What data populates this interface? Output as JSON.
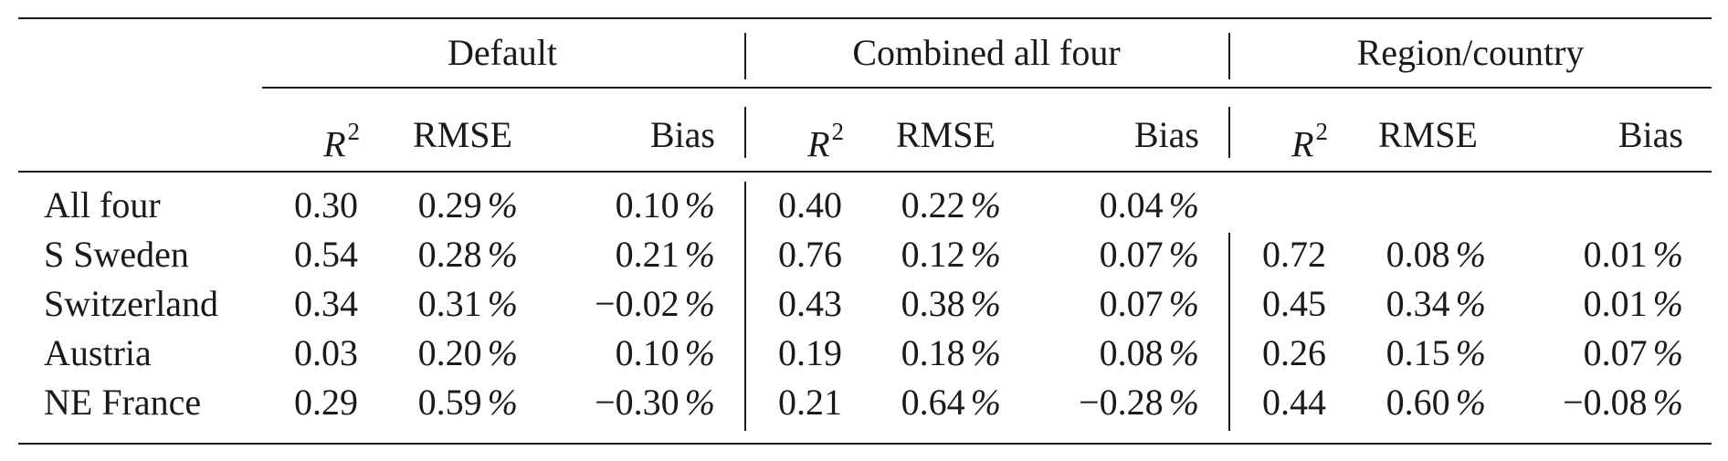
{
  "table": {
    "groups": [
      "Default",
      "Combined all four",
      "Region/country"
    ],
    "subheaders": {
      "r2_symbol": "R",
      "r2_exponent": "2",
      "rmse": "RMSE",
      "bias": "Bias"
    },
    "percent_sign": "%",
    "rows": [
      {
        "label": "All four",
        "default": {
          "r2": "0.30",
          "rmse": "0.29",
          "bias": "0.10"
        },
        "combined": {
          "r2": "0.40",
          "rmse": "0.22",
          "bias": "0.04"
        },
        "region": {
          "r2": "",
          "rmse": "",
          "bias": ""
        }
      },
      {
        "label": "S Sweden",
        "default": {
          "r2": "0.54",
          "rmse": "0.28",
          "bias": "0.21"
        },
        "combined": {
          "r2": "0.76",
          "rmse": "0.12",
          "bias": "0.07"
        },
        "region": {
          "r2": "0.72",
          "rmse": "0.08",
          "bias": "0.01"
        }
      },
      {
        "label": "Switzerland",
        "default": {
          "r2": "0.34",
          "rmse": "0.31",
          "bias": "−0.02"
        },
        "combined": {
          "r2": "0.43",
          "rmse": "0.38",
          "bias": "0.07"
        },
        "region": {
          "r2": "0.45",
          "rmse": "0.34",
          "bias": "0.01"
        }
      },
      {
        "label": "Austria",
        "default": {
          "r2": "0.03",
          "rmse": "0.20",
          "bias": "0.10"
        },
        "combined": {
          "r2": "0.19",
          "rmse": "0.18",
          "bias": "0.08"
        },
        "region": {
          "r2": "0.26",
          "rmse": "0.15",
          "bias": "0.07"
        }
      },
      {
        "label": "NE France",
        "default": {
          "r2": "0.29",
          "rmse": "0.59",
          "bias": "−0.30"
        },
        "combined": {
          "r2": "0.21",
          "rmse": "0.64",
          "bias": "−0.28"
        },
        "region": {
          "r2": "0.44",
          "rmse": "0.60",
          "bias": "−0.08"
        }
      }
    ]
  }
}
